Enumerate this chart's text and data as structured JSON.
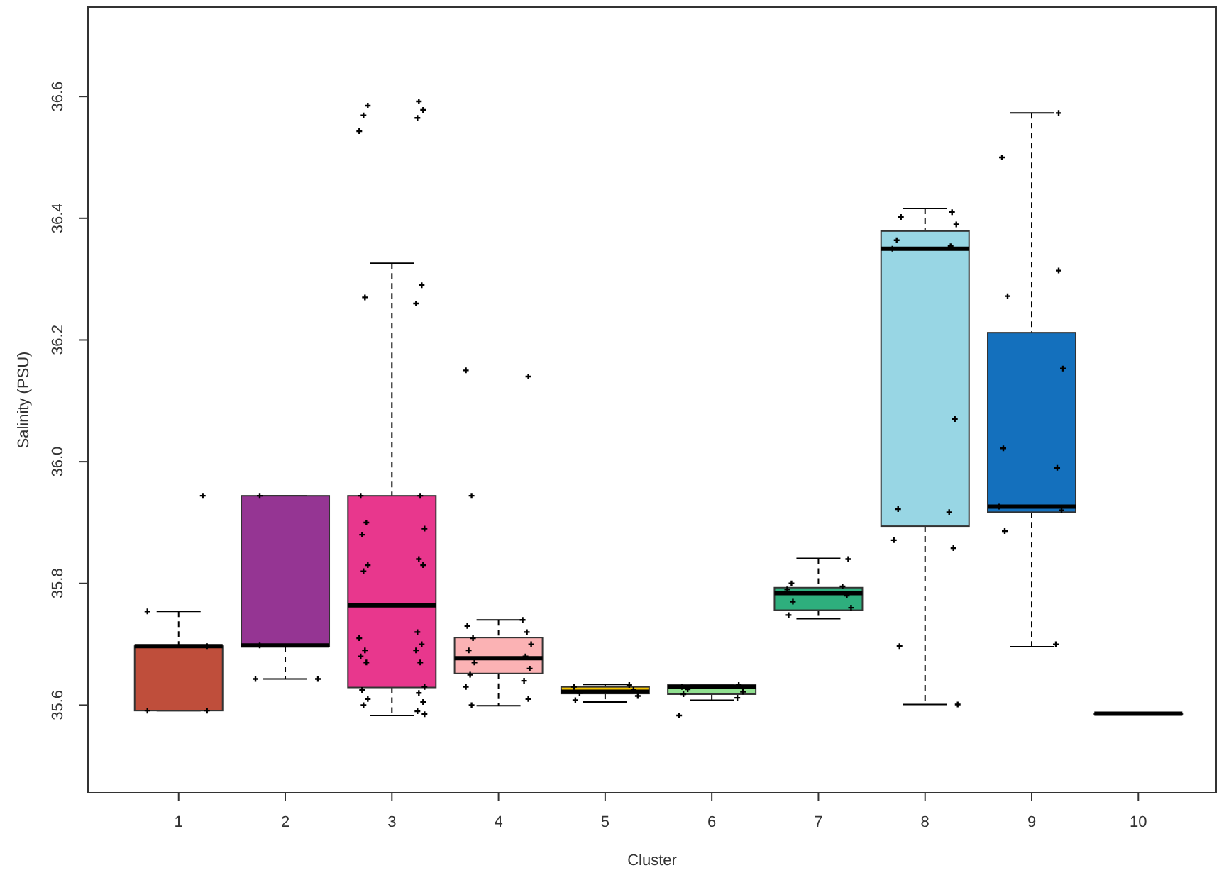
{
  "chart_data": {
    "type": "box",
    "xlabel": "Cluster",
    "ylabel": "Salinity (PSU)",
    "categories": [
      "1",
      "2",
      "3",
      "4",
      "5",
      "6",
      "7",
      "8",
      "9",
      "10"
    ],
    "colors": [
      "#bf4e3b",
      "#953593",
      "#e8378d",
      "#fbb2b4",
      "#f2c300",
      "#90e090",
      "#2eaf7d",
      "#98d6e4",
      "#1470bd",
      "#444444"
    ],
    "boxes": [
      {
        "low": 35.591,
        "q1": 35.591,
        "median": 35.697,
        "q3": 35.697,
        "high": 35.754
      },
      {
        "low": 35.643,
        "q1": 35.696,
        "median": 35.698,
        "q3": 35.944,
        "high": 35.944
      },
      {
        "low": 35.583,
        "q1": 35.629,
        "median": 35.764,
        "q3": 35.944,
        "high": 36.326
      },
      {
        "low": 35.599,
        "q1": 35.652,
        "median": 35.677,
        "q3": 35.711,
        "high": 35.74
      },
      {
        "low": 35.605,
        "q1": 35.619,
        "median": 35.622,
        "q3": 35.63,
        "high": 35.634
      },
      {
        "low": 35.608,
        "q1": 35.618,
        "median": 35.63,
        "q3": 35.633,
        "high": 35.634
      },
      {
        "low": 35.742,
        "q1": 35.756,
        "median": 35.784,
        "q3": 35.793,
        "high": 35.841
      },
      {
        "low": 35.601,
        "q1": 35.894,
        "median": 36.35,
        "q3": 36.379,
        "high": 36.416
      },
      {
        "low": 35.696,
        "q1": 35.917,
        "median": 35.926,
        "q3": 36.212,
        "high": 36.573
      },
      {
        "low": 35.586,
        "q1": 35.586,
        "median": 35.586,
        "q3": 35.586,
        "high": 35.586
      }
    ],
    "series": [
      {
        "type": "scatter",
        "color": "#000000",
        "x": [
          "1",
          "1",
          "1",
          "2",
          "2",
          "2",
          "3",
          "3",
          "3",
          "3",
          "3",
          "3",
          "3",
          "3",
          "3",
          "3",
          "3",
          "3",
          "3",
          "3",
          "3",
          "3",
          "3",
          "3",
          "3",
          "3",
          "3",
          "3",
          "3",
          "3",
          "3",
          "3",
          "3",
          "3",
          "3",
          "3",
          "3",
          "3",
          "3",
          "4",
          "4",
          "4",
          "4",
          "4",
          "4",
          "4",
          "4",
          "4",
          "4",
          "4",
          "4",
          "4",
          "4",
          "4",
          "4",
          "4",
          "5",
          "5",
          "5",
          "5",
          "5",
          "5",
          "6",
          "6",
          "6",
          "6",
          "6",
          "6",
          "7",
          "7",
          "7",
          "7",
          "7",
          "7",
          "7",
          "7",
          "8",
          "8",
          "8",
          "8",
          "8",
          "8",
          "8",
          "8",
          "8",
          "8",
          "8",
          "8",
          "8",
          "9",
          "9",
          "9",
          "9",
          "9",
          "9",
          "9",
          "9",
          "9",
          "9",
          "1",
          "1",
          "2",
          "3",
          "6",
          "9"
        ],
        "values": [
          35.944,
          35.754,
          35.697,
          35.698,
          35.643,
          35.643,
          36.592,
          36.585,
          36.578,
          36.569,
          36.565,
          36.543,
          36.29,
          36.27,
          36.26,
          35.944,
          35.944,
          35.9,
          35.89,
          35.88,
          35.84,
          35.83,
          35.83,
          35.82,
          35.72,
          35.71,
          35.7,
          35.69,
          35.69,
          35.68,
          35.67,
          35.67,
          35.63,
          35.625,
          35.62,
          35.61,
          35.605,
          35.6,
          35.59,
          36.15,
          36.14,
          35.944,
          35.74,
          35.73,
          35.72,
          35.71,
          35.7,
          35.69,
          35.68,
          35.67,
          35.66,
          35.65,
          35.64,
          35.63,
          35.61,
          35.6,
          35.633,
          35.63,
          35.625,
          35.62,
          35.615,
          35.608,
          35.633,
          35.626,
          35.622,
          35.618,
          35.612,
          35.583,
          35.84,
          35.8,
          35.795,
          35.79,
          35.78,
          35.77,
          35.76,
          35.748,
          36.41,
          36.402,
          36.39,
          36.364,
          36.354,
          36.35,
          36.07,
          35.922,
          35.917,
          35.871,
          35.858,
          35.697,
          35.601,
          36.5,
          36.314,
          36.272,
          36.153,
          36.022,
          35.99,
          35.926,
          35.92,
          35.886,
          35.7,
          35.591,
          35.591,
          35.944,
          35.585,
          35.63,
          36.573
        ]
      }
    ],
    "marker": "cross",
    "ylim": [
      35.456,
      36.747
    ],
    "yticks": [
      {
        "value": 35.6,
        "label": "35.6"
      },
      {
        "value": 35.8,
        "label": "35.8"
      },
      {
        "value": 36.0,
        "label": "36.0"
      },
      {
        "value": 36.2,
        "label": "36.2"
      },
      {
        "value": 36.4,
        "label": "36.4"
      },
      {
        "value": 36.6,
        "label": "36.6"
      }
    ],
    "grid": false
  }
}
